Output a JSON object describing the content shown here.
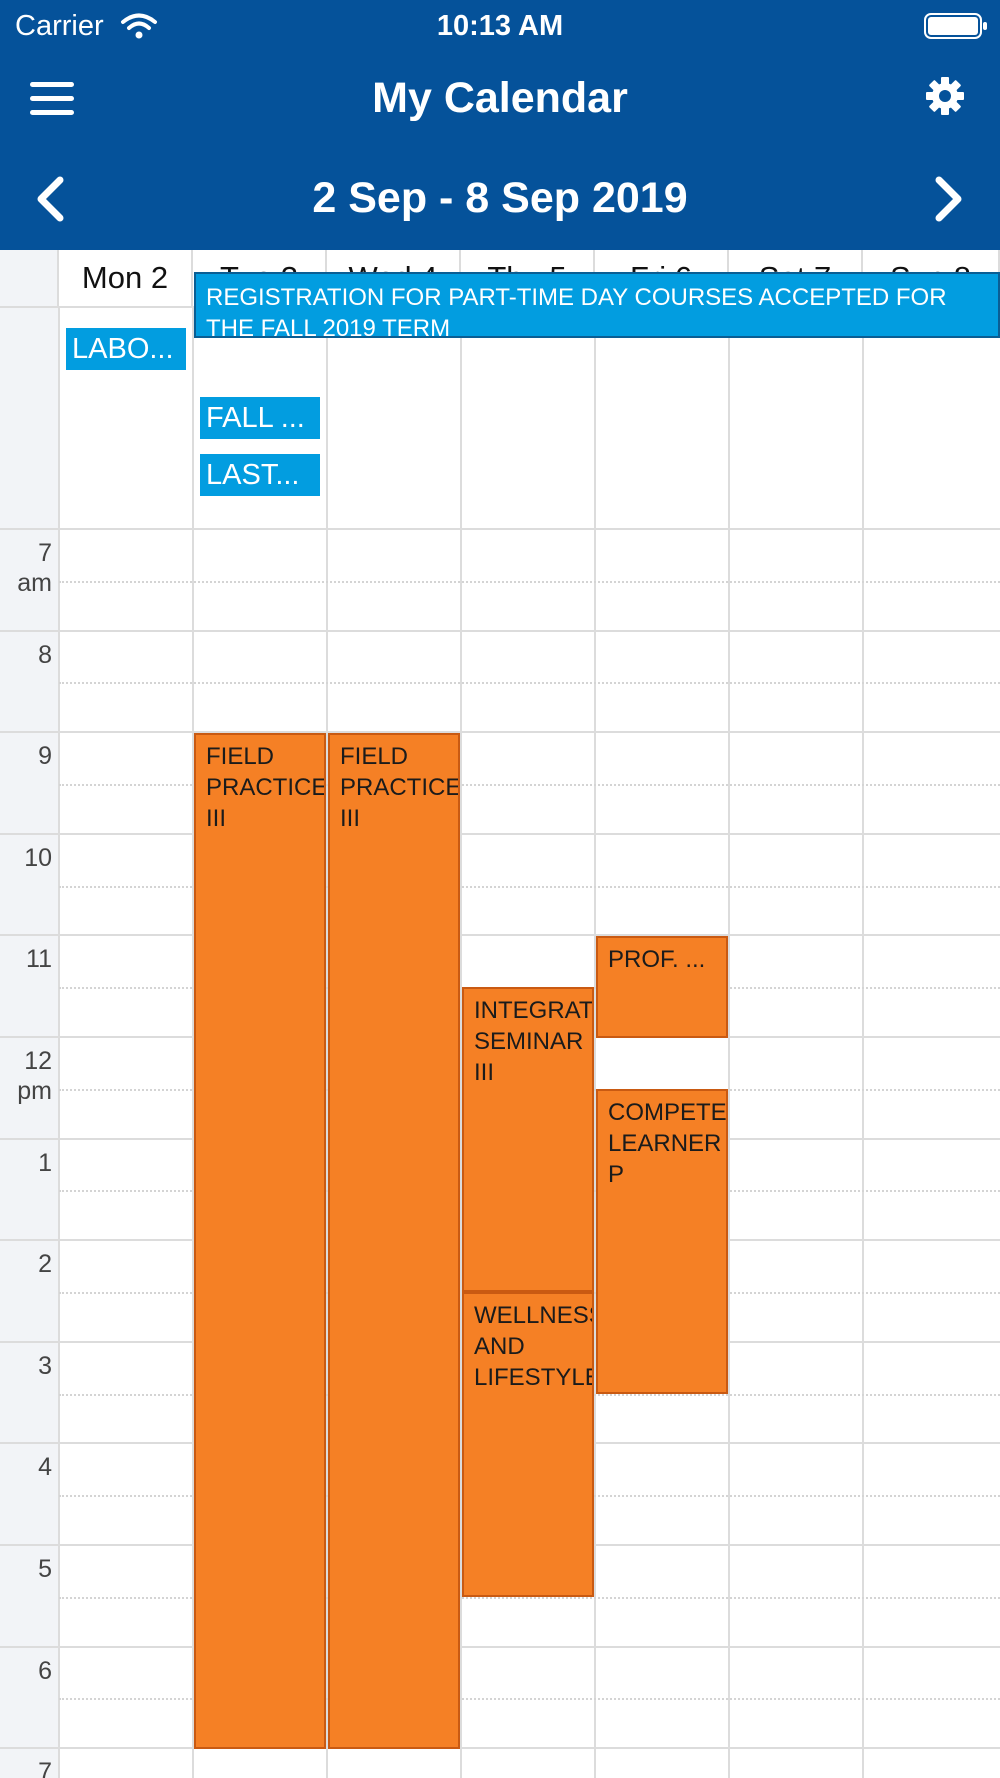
{
  "status_bar": {
    "carrier": "Carrier",
    "time": "10:13 AM"
  },
  "header": {
    "title": "My Calendar",
    "week_range": "2 Sep - 8 Sep 2019"
  },
  "days": [
    {
      "label": "Mon 2"
    },
    {
      "label": "Tue 3"
    },
    {
      "label": "Wed 4"
    },
    {
      "label": "Thu 5"
    },
    {
      "label": "Fri 6"
    },
    {
      "label": "Sat 7"
    },
    {
      "label": "Sun 8"
    }
  ],
  "hours": [
    {
      "hour": "7",
      "suffix": "am"
    },
    {
      "hour": "8",
      "suffix": ""
    },
    {
      "hour": "9",
      "suffix": ""
    },
    {
      "hour": "10",
      "suffix": ""
    },
    {
      "hour": "11",
      "suffix": ""
    },
    {
      "hour": "12",
      "suffix": "pm"
    },
    {
      "hour": "1",
      "suffix": ""
    },
    {
      "hour": "2",
      "suffix": ""
    },
    {
      "hour": "3",
      "suffix": ""
    },
    {
      "hour": "4",
      "suffix": ""
    },
    {
      "hour": "5",
      "suffix": ""
    },
    {
      "hour": "6",
      "suffix": ""
    },
    {
      "hour": "7",
      "suffix": ""
    }
  ],
  "all_day_events": [
    {
      "text": "LABO..."
    },
    {
      "text": "REGISTRATION FOR PART-TIME DAY COURSES ACCEPTED FOR THE FALL 2019 TERM"
    },
    {
      "text": "FALL ..."
    },
    {
      "text": "LAST..."
    }
  ],
  "events": [
    {
      "lines": [
        "FIELD",
        "PRACTICE",
        "III"
      ],
      "day": "Tue 3",
      "start": "9:00",
      "end": "19:00"
    },
    {
      "lines": [
        "FIELD",
        "PRACTICE",
        "III"
      ],
      "day": "Wed 4",
      "start": "9:00",
      "end": "19:00"
    },
    {
      "lines": [
        "INTEGRAT",
        "SEMINAR",
        "III"
      ],
      "day": "Thu 5",
      "start": "11:30",
      "end": "14:30"
    },
    {
      "lines": [
        "WELLNESS",
        "AND",
        "LIFESTYLE"
      ],
      "day": "Thu 5",
      "start": "14:30",
      "end": "17:30"
    },
    {
      "lines": [
        "PROF. ..."
      ],
      "day": "Fri 6",
      "start": "11:00",
      "end": "12:00"
    },
    {
      "lines": [
        "COMPETE",
        "LEARNER",
        "P"
      ],
      "day": "Fri 6",
      "start": "12:30",
      "end": "15:30"
    }
  ],
  "colors": {
    "header_bg": "#05529a",
    "all_day": "#029de0",
    "class_event": "#f58025"
  }
}
